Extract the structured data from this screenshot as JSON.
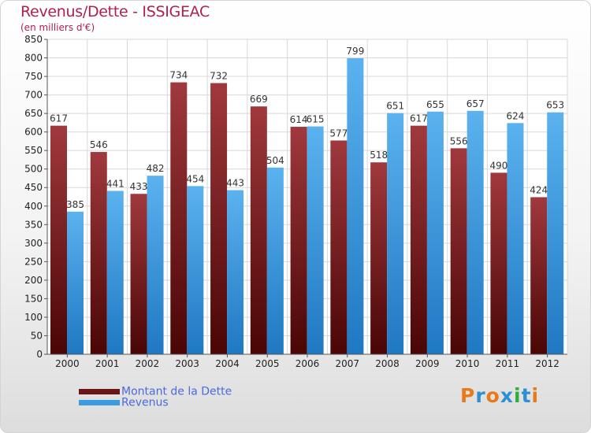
{
  "title": "Revenus/Dette - ISSIGEAC",
  "subtitle": "(en milliers d'€)",
  "colors": {
    "dette": "#6b1616",
    "revenus": "#3d9be2",
    "title": "#b0204a",
    "legend_text": "#4a6ae0"
  },
  "legend": {
    "dette": "Montant de la Dette",
    "revenus": "Revenus"
  },
  "logo": {
    "text": "Proxiti",
    "letter_colors": [
      "#e8791c",
      "#2f8fd3",
      "#e8791c",
      "#2f8fd3",
      "#2fae3f",
      "#2f8fd3",
      "#e8791c"
    ]
  },
  "chart_data": {
    "type": "bar",
    "title": "Revenus/Dette - ISSIGEAC",
    "ylabel": "(en milliers d'€)",
    "xlabel": "",
    "categories": [
      "2000",
      "2001",
      "2002",
      "2003",
      "2004",
      "2005",
      "2006",
      "2007",
      "2008",
      "2009",
      "2010",
      "2011",
      "2012"
    ],
    "series": [
      {
        "name": "Montant de la Dette",
        "values": [
          617,
          546,
          433,
          734,
          732,
          669,
          614,
          577,
          518,
          617,
          556,
          490,
          424
        ]
      },
      {
        "name": "Revenus",
        "values": [
          385,
          441,
          482,
          454,
          443,
          504,
          615,
          799,
          651,
          655,
          657,
          624,
          653
        ]
      }
    ],
    "ylim": [
      0,
      850
    ],
    "yticks": [
      0,
      50,
      100,
      150,
      200,
      250,
      300,
      350,
      400,
      450,
      500,
      550,
      600,
      650,
      700,
      750,
      800,
      850
    ],
    "grid": true,
    "legend_position": "bottom-left"
  }
}
